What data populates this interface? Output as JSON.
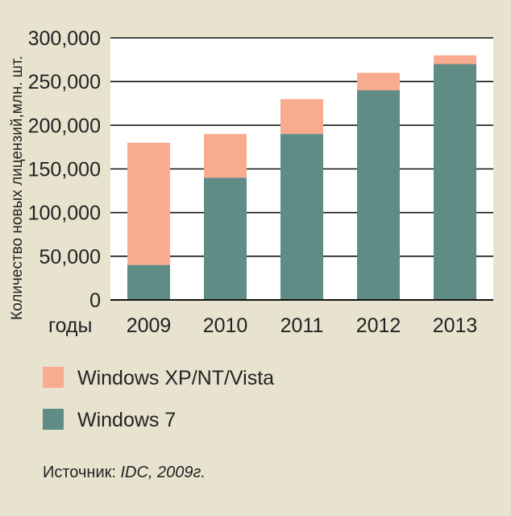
{
  "chart_data": {
    "type": "bar",
    "stacked": true,
    "categories": [
      "2009",
      "2010",
      "2011",
      "2012",
      "2013"
    ],
    "x_prefix_label": "годы",
    "series": [
      {
        "name": "Windows 7",
        "color": "#5f8c85",
        "values": [
          40000,
          140000,
          190000,
          240000,
          270000
        ]
      },
      {
        "name": "Windows XP/NT/Vista",
        "color": "#f9ab8f",
        "values": [
          140000,
          50000,
          40000,
          20000,
          10000
        ]
      }
    ],
    "ylabel": "Количество новых лицензий,млн. шт.",
    "ylim": [
      0,
      300000
    ],
    "yticks": [
      0,
      50000,
      100000,
      150000,
      200000,
      250000,
      300000
    ],
    "ytick_labels": [
      "0",
      "50,000",
      "100,000",
      "150,000",
      "200,000",
      "250,000",
      "300,000"
    ],
    "grid": true,
    "legend_position": "bottom-left",
    "legend_order": [
      "Windows XP/NT/Vista",
      "Windows 7"
    ]
  },
  "source": {
    "prefix": "Источник: ",
    "italic": "IDC, 2009г."
  }
}
